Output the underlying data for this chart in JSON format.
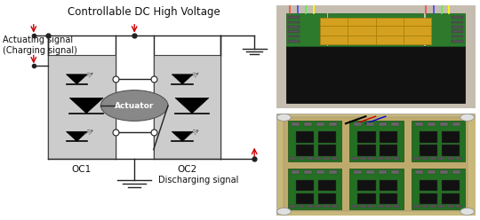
{
  "bg_color": "#ffffff",
  "title_text": "Controllable DC High Voltage",
  "label_actuating": "Actuating signal\n(Charging signal)",
  "label_discharging": "Discharging signal",
  "label_oc1": "OC1",
  "label_oc2": "OC2",
  "label_actuator": "Actuator",
  "box_fill": "#cccccc",
  "box_edge": "#444444",
  "circle_fill": "#888888",
  "line_color": "#222222",
  "red_color": "#cc0000",
  "font_size_title": 8.5,
  "font_size_label": 7,
  "font_size_oc": 7.5
}
